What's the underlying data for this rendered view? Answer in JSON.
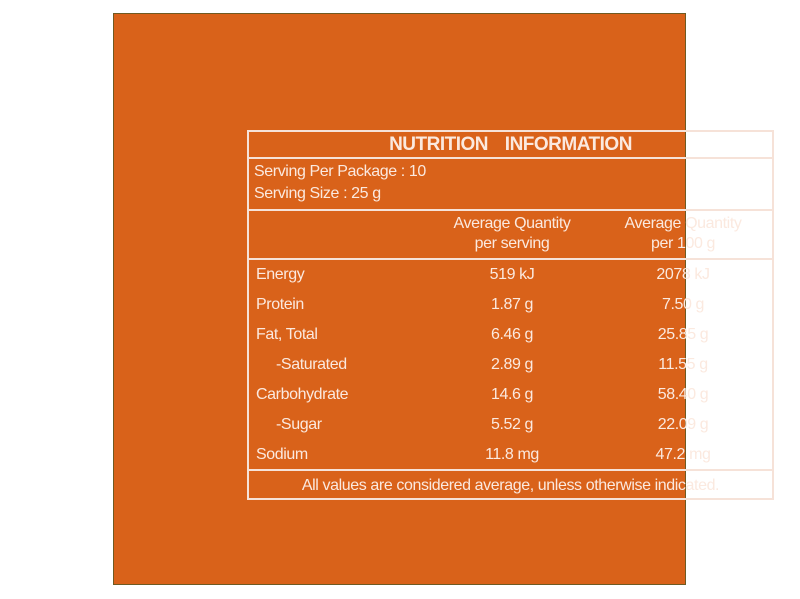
{
  "title": "NUTRITION INFORMATION",
  "serving": {
    "per_package": "Serving Per Package : 10",
    "size": "Serving Size : 25 g"
  },
  "columns": {
    "per_serving": [
      "Average Quantity",
      "per serving"
    ],
    "per_100g": [
      "Average Quantity",
      "per 100 g"
    ]
  },
  "rows": [
    {
      "label": "Energy",
      "per_serving": "519 kJ",
      "per_100g": "2078 kJ"
    },
    {
      "label": "Protein",
      "per_serving": "1.87 g",
      "per_100g": "7.50 g"
    },
    {
      "label": "Fat, Total",
      "per_serving": "6.46 g",
      "per_100g": "25.85 g"
    },
    {
      "label": "-Saturated",
      "per_serving": "2.89 g",
      "per_100g": "11.55 g"
    },
    {
      "label": "Carbohydrate",
      "per_serving": "14.6 g",
      "per_100g": "58.40 g"
    },
    {
      "label": "-Sugar",
      "per_serving": "5.52 g",
      "per_100g": "22.09 g"
    },
    {
      "label": "Sodium",
      "per_serving": "11.8 mg",
      "per_100g": "47.2 mg"
    }
  ],
  "footer": "All values are considered average, unless otherwise indicated.",
  "colors": {
    "background": "#d9621a",
    "lines": "#f6e2d8",
    "text": "#fbe9df"
  }
}
